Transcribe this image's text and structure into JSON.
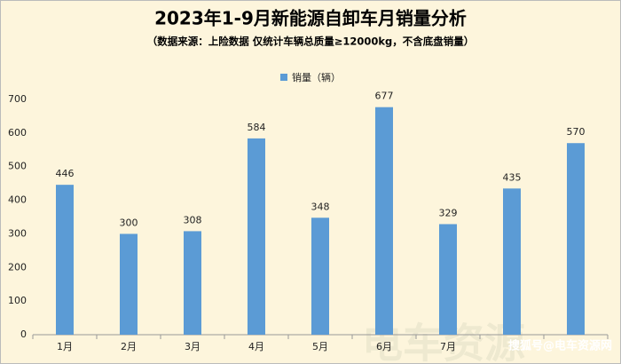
{
  "chart_data": {
    "type": "bar",
    "title": "2023年1-9月新能源自卸车月销量分析",
    "subtitle": "（数据来源：上险数据 仅统计车辆总质量≥12000kg，不含底盘销量）",
    "series": [
      {
        "name": "销量（辆）",
        "color": "#5b9bd5",
        "values": [
          446,
          300,
          308,
          584,
          348,
          677,
          329,
          435,
          570
        ]
      }
    ],
    "categories": [
      "1月",
      "2月",
      "3月",
      "4月",
      "5月",
      "6月",
      "7月",
      null,
      null
    ],
    "ylim": [
      0,
      700
    ],
    "yticks": [
      0,
      100,
      200,
      300,
      400,
      500,
      600,
      700
    ],
    "grid": false,
    "legend": "top",
    "watermark": "搜狐号@电车资源网"
  }
}
